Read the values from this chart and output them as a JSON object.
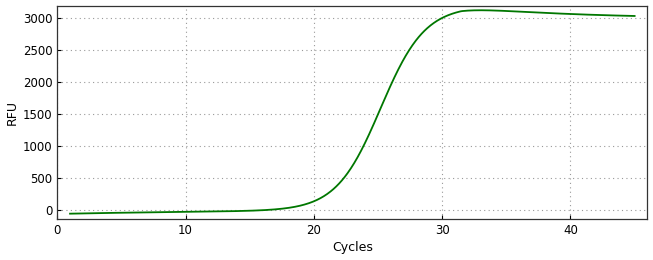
{
  "xlabel": "Cycles",
  "ylabel": "RFU",
  "line_color": "#007700",
  "line_width": 1.3,
  "background_color": "#ffffff",
  "grid_color": "#999999",
  "xlim": [
    0,
    46
  ],
  "ylim": [
    -150,
    3200
  ],
  "xticks": [
    0,
    10,
    20,
    30,
    40
  ],
  "yticks": [
    0,
    500,
    1000,
    1500,
    2000,
    2500,
    3000
  ],
  "x_start": 1,
  "x_end": 45,
  "sigmoid_L": 3200,
  "sigmoid_k": 0.58,
  "sigmoid_x0": 25.2,
  "baseline_level": -60,
  "baseline_rise": 0.07,
  "peak_x": 31.5,
  "peak_drop_total": 200,
  "peak_drop_rate": 0.12
}
